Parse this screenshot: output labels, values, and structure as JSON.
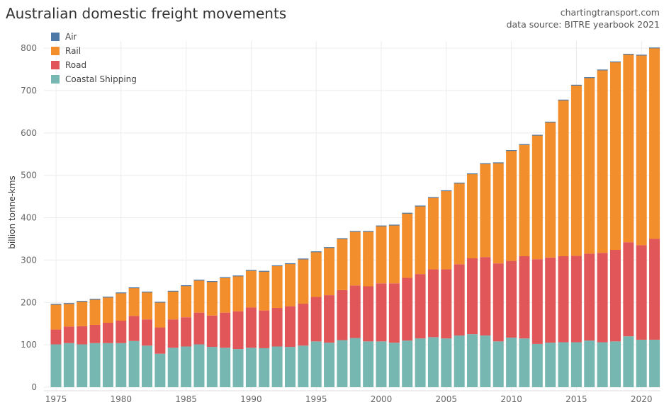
{
  "chart_data": {
    "type": "bar",
    "stacked": true,
    "title": "Australian domestic freight movements",
    "source_line1": "chartingtransport.com",
    "source_line2": "data source: BITRE yearbook 2021",
    "ylabel": "billion tonne-kms",
    "xlabel": "",
    "ylim": [
      0,
      800
    ],
    "yticks": [
      0,
      100,
      200,
      300,
      400,
      500,
      600,
      700,
      800
    ],
    "xticks": [
      1975,
      1980,
      1985,
      1990,
      1995,
      2000,
      2005,
      2010,
      2015,
      2020
    ],
    "legend_position": "top-left",
    "grid": true,
    "categories": [
      1975,
      1976,
      1977,
      1978,
      1979,
      1980,
      1981,
      1982,
      1983,
      1984,
      1985,
      1986,
      1987,
      1988,
      1989,
      1990,
      1991,
      1992,
      1993,
      1994,
      1995,
      1996,
      1997,
      1998,
      1999,
      2000,
      2001,
      2002,
      2003,
      2004,
      2005,
      2006,
      2007,
      2008,
      2009,
      2010,
      2011,
      2012,
      2013,
      2014,
      2015,
      2016,
      2017,
      2018,
      2019,
      2020,
      2021
    ],
    "series": [
      {
        "name": "Coastal Shipping",
        "color": "#76b7b2",
        "values": [
          101,
          104,
          101,
          104,
          104,
          104,
          109,
          98,
          79,
          93,
          96,
          101,
          95,
          93,
          90,
          93,
          92,
          96,
          95,
          98,
          108,
          105,
          111,
          116,
          108,
          108,
          105,
          110,
          115,
          118,
          115,
          122,
          125,
          122,
          108,
          117,
          115,
          102,
          105,
          106,
          106,
          110,
          106,
          108,
          120,
          112,
          112
        ]
      },
      {
        "name": "Road",
        "color": "#e15759",
        "values": [
          35,
          39,
          43,
          43,
          48,
          53,
          59,
          62,
          62,
          67,
          69,
          75,
          74,
          83,
          89,
          95,
          89,
          91,
          96,
          99,
          105,
          112,
          118,
          124,
          130,
          137,
          140,
          148,
          152,
          160,
          163,
          168,
          179,
          185,
          184,
          181,
          194,
          200,
          201,
          203,
          204,
          205,
          211,
          216,
          222,
          223,
          238
        ]
      },
      {
        "name": "Rail",
        "color": "#f28e2b",
        "values": [
          59,
          54,
          58,
          60,
          60,
          65,
          66,
          64,
          59,
          66,
          74,
          76,
          80,
          82,
          83,
          87,
          92,
          99,
          100,
          105,
          106,
          112,
          121,
          127,
          129,
          135,
          137,
          152,
          160,
          169,
          185,
          191,
          199,
          220,
          237,
          260,
          263,
          292,
          319,
          368,
          402,
          415,
          431,
          443,
          443,
          448,
          450
        ]
      },
      {
        "name": "Air",
        "color": "#4e79a7",
        "values": [
          1.5,
          1.5,
          1.5,
          1.5,
          1.5,
          1.5,
          1.5,
          1.5,
          1.5,
          1.5,
          1.5,
          1.5,
          1.5,
          1.5,
          1.5,
          1.5,
          1.5,
          1.5,
          1.5,
          1.5,
          1.5,
          1.5,
          1.5,
          1.5,
          1.5,
          1.5,
          1.5,
          1.5,
          1.5,
          1.5,
          1.5,
          1.5,
          1.5,
          1.5,
          1.5,
          1.5,
          1.5,
          1.5,
          1.5,
          1.5,
          1.5,
          1.5,
          1.5,
          1.5,
          1.5,
          1.5,
          1.5
        ]
      }
    ],
    "legend_order": [
      "Air",
      "Rail",
      "Road",
      "Coastal Shipping"
    ]
  }
}
